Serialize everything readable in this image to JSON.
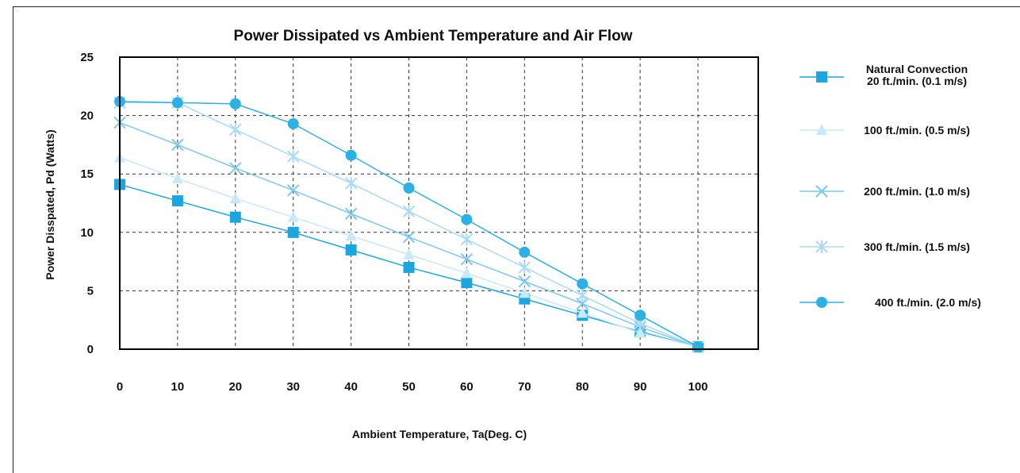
{
  "chart_data": {
    "type": "line",
    "title": "Power Dissipated vs Ambient Temperature and Air Flow",
    "xlabel": "Ambient Temperature, Ta(Deg. C)",
    "ylabel": "Power Disspated, Pd (Watts)",
    "xlim": [
      0,
      100
    ],
    "ylim": [
      0,
      25
    ],
    "x_ticks": [
      0,
      10,
      20,
      30,
      40,
      50,
      60,
      70,
      80,
      90,
      100
    ],
    "y_ticks": [
      0,
      5,
      10,
      15,
      20,
      25
    ],
    "grid": true,
    "legend_position": "right",
    "x": [
      0,
      10,
      20,
      30,
      40,
      50,
      60,
      70,
      80,
      90,
      100
    ],
    "series": [
      {
        "name": "Natural Convection\n20 ft./min. (0.1 m/s)",
        "name_lines": [
          "Natural Convection",
          "20 ft./min. (0.1 m/s)"
        ],
        "marker": "square",
        "color": "#1aa7e0",
        "values": [
          14.1,
          12.7,
          11.3,
          10.0,
          8.5,
          7.0,
          5.7,
          4.3,
          2.9,
          1.5,
          0.2
        ]
      },
      {
        "name": "100 ft./min. (0.5 m/s)",
        "name_lines": [
          "100 ft./min. (0.5 m/s)"
        ],
        "marker": "triangle",
        "color": "#c9e8f8",
        "values": [
          16.4,
          14.6,
          12.9,
          11.3,
          9.7,
          8.1,
          6.5,
          4.8,
          3.1,
          1.4,
          0.2
        ]
      },
      {
        "name": "200 ft./min. (1.0 m/s)",
        "name_lines": [
          "200 ft./min. (1.0 m/s)"
        ],
        "marker": "x",
        "color": "#7cc8ee",
        "values": [
          19.4,
          17.5,
          15.5,
          13.6,
          11.6,
          9.6,
          7.7,
          5.8,
          3.9,
          1.9,
          0.2
        ]
      },
      {
        "name": "300 ft./min. (1.5 m/s)",
        "name_lines": [
          "300 ft./min. (1.5 m/s)"
        ],
        "marker": "star",
        "color": "#a9dbf4",
        "values": [
          21.1,
          21.1,
          18.8,
          16.5,
          14.2,
          11.8,
          9.4,
          7.0,
          4.6,
          2.2,
          0.2
        ]
      },
      {
        "name": "400 ft./min. (2.0 m/s)",
        "name_lines": [
          "400 ft./min. (2.0 m/s)"
        ],
        "marker": "circle",
        "color": "#2bb1e6",
        "values": [
          21.2,
          21.1,
          21.0,
          19.3,
          16.6,
          13.8,
          11.1,
          8.3,
          5.6,
          2.9,
          0.2
        ]
      }
    ]
  }
}
